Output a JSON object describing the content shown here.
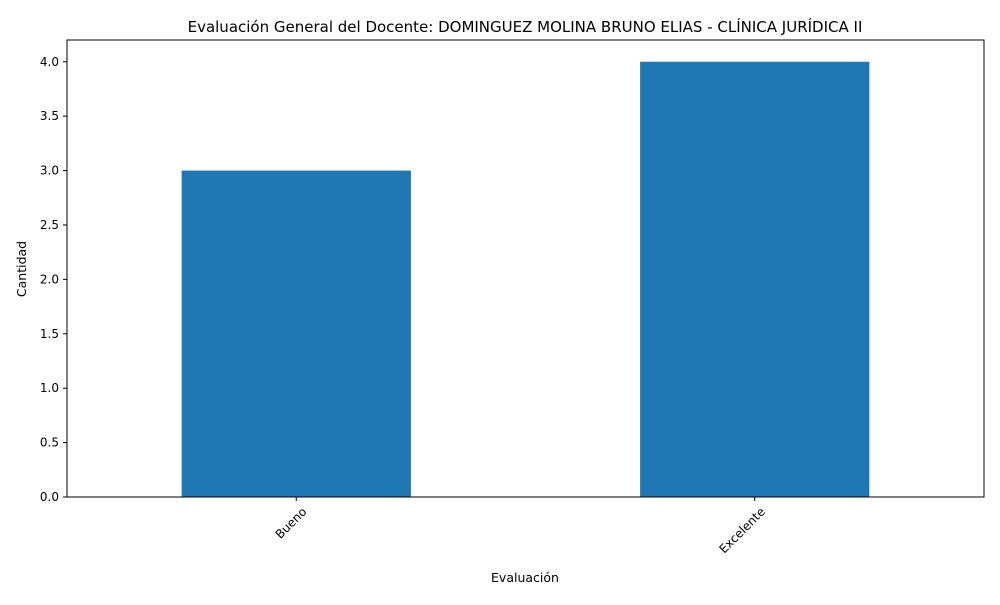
{
  "chart_data": {
    "type": "bar",
    "title": "Evaluación General del Docente: DOMINGUEZ MOLINA BRUNO ELIAS - CLÍNICA JURÍDICA II",
    "xlabel": "Evaluación",
    "ylabel": "Cantidad",
    "categories": [
      "Bueno",
      "Excelente"
    ],
    "values": [
      3,
      4
    ],
    "ylim": [
      0,
      4.2
    ],
    "yticks": [
      "0.0",
      "0.5",
      "1.0",
      "1.5",
      "2.0",
      "2.5",
      "3.0",
      "3.5",
      "4.0"
    ],
    "xtick_rotation_deg": 45,
    "grid": false,
    "legend": "none",
    "bar_color": "#1f77b4"
  }
}
